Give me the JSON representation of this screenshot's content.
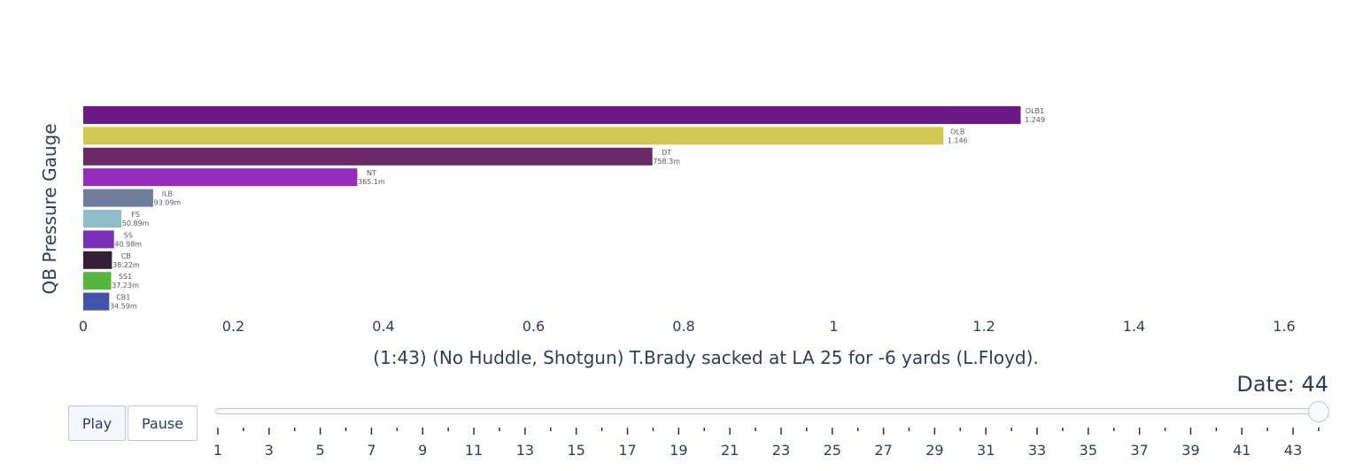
{
  "chart_data": {
    "type": "bar",
    "orientation": "horizontal",
    "title": "",
    "xlabel": "(1:43) (No Huddle, Shotgun) T.Brady sacked at LA 25 for -6 yards (L.Floyd).",
    "ylabel": "QB Pressure Gauge",
    "xlim": [
      0,
      1.6
    ],
    "x_ticks": [
      "0",
      "0.2",
      "0.4",
      "0.6",
      "0.8",
      "1",
      "1.2",
      "1.4",
      "1.6"
    ],
    "grid": false,
    "bars": [
      {
        "category": "OLB1",
        "value": 1.249,
        "label": "1.249",
        "color": "#6c1a87"
      },
      {
        "category": "OLB",
        "value": 1.146,
        "label": "1.146",
        "color": "#d2c753"
      },
      {
        "category": "DT",
        "value": 0.7583,
        "label": "758.3m",
        "color": "#6b2967"
      },
      {
        "category": "NT",
        "value": 0.3651,
        "label": "365.1m",
        "color": "#962cbc"
      },
      {
        "category": "ILB",
        "value": 0.09309,
        "label": "93.09m",
        "color": "#6e7d9b"
      },
      {
        "category": "FS",
        "value": 0.05089,
        "label": "50.89m",
        "color": "#8dbcca"
      },
      {
        "category": "SS",
        "value": 0.04098,
        "label": "40.98m",
        "color": "#7a2db6"
      },
      {
        "category": "CB",
        "value": 0.03822,
        "label": "38.22m",
        "color": "#361d38"
      },
      {
        "category": "SS1",
        "value": 0.03723,
        "label": "37.23m",
        "color": "#57b53d"
      },
      {
        "category": "CB1",
        "value": 0.03459,
        "label": "34.59m",
        "color": "#4353ab"
      }
    ]
  },
  "controls": {
    "play_label": "Play",
    "pause_label": "Pause"
  },
  "slider": {
    "prefix": "Date: ",
    "current": 44,
    "readout": "Date: 44",
    "min": 1,
    "max": 44,
    "tick_labels": [
      "1",
      "3",
      "5",
      "7",
      "9",
      "11",
      "13",
      "15",
      "17",
      "19",
      "21",
      "23",
      "25",
      "27",
      "29",
      "31",
      "33",
      "35",
      "37",
      "39",
      "41",
      "43"
    ]
  }
}
